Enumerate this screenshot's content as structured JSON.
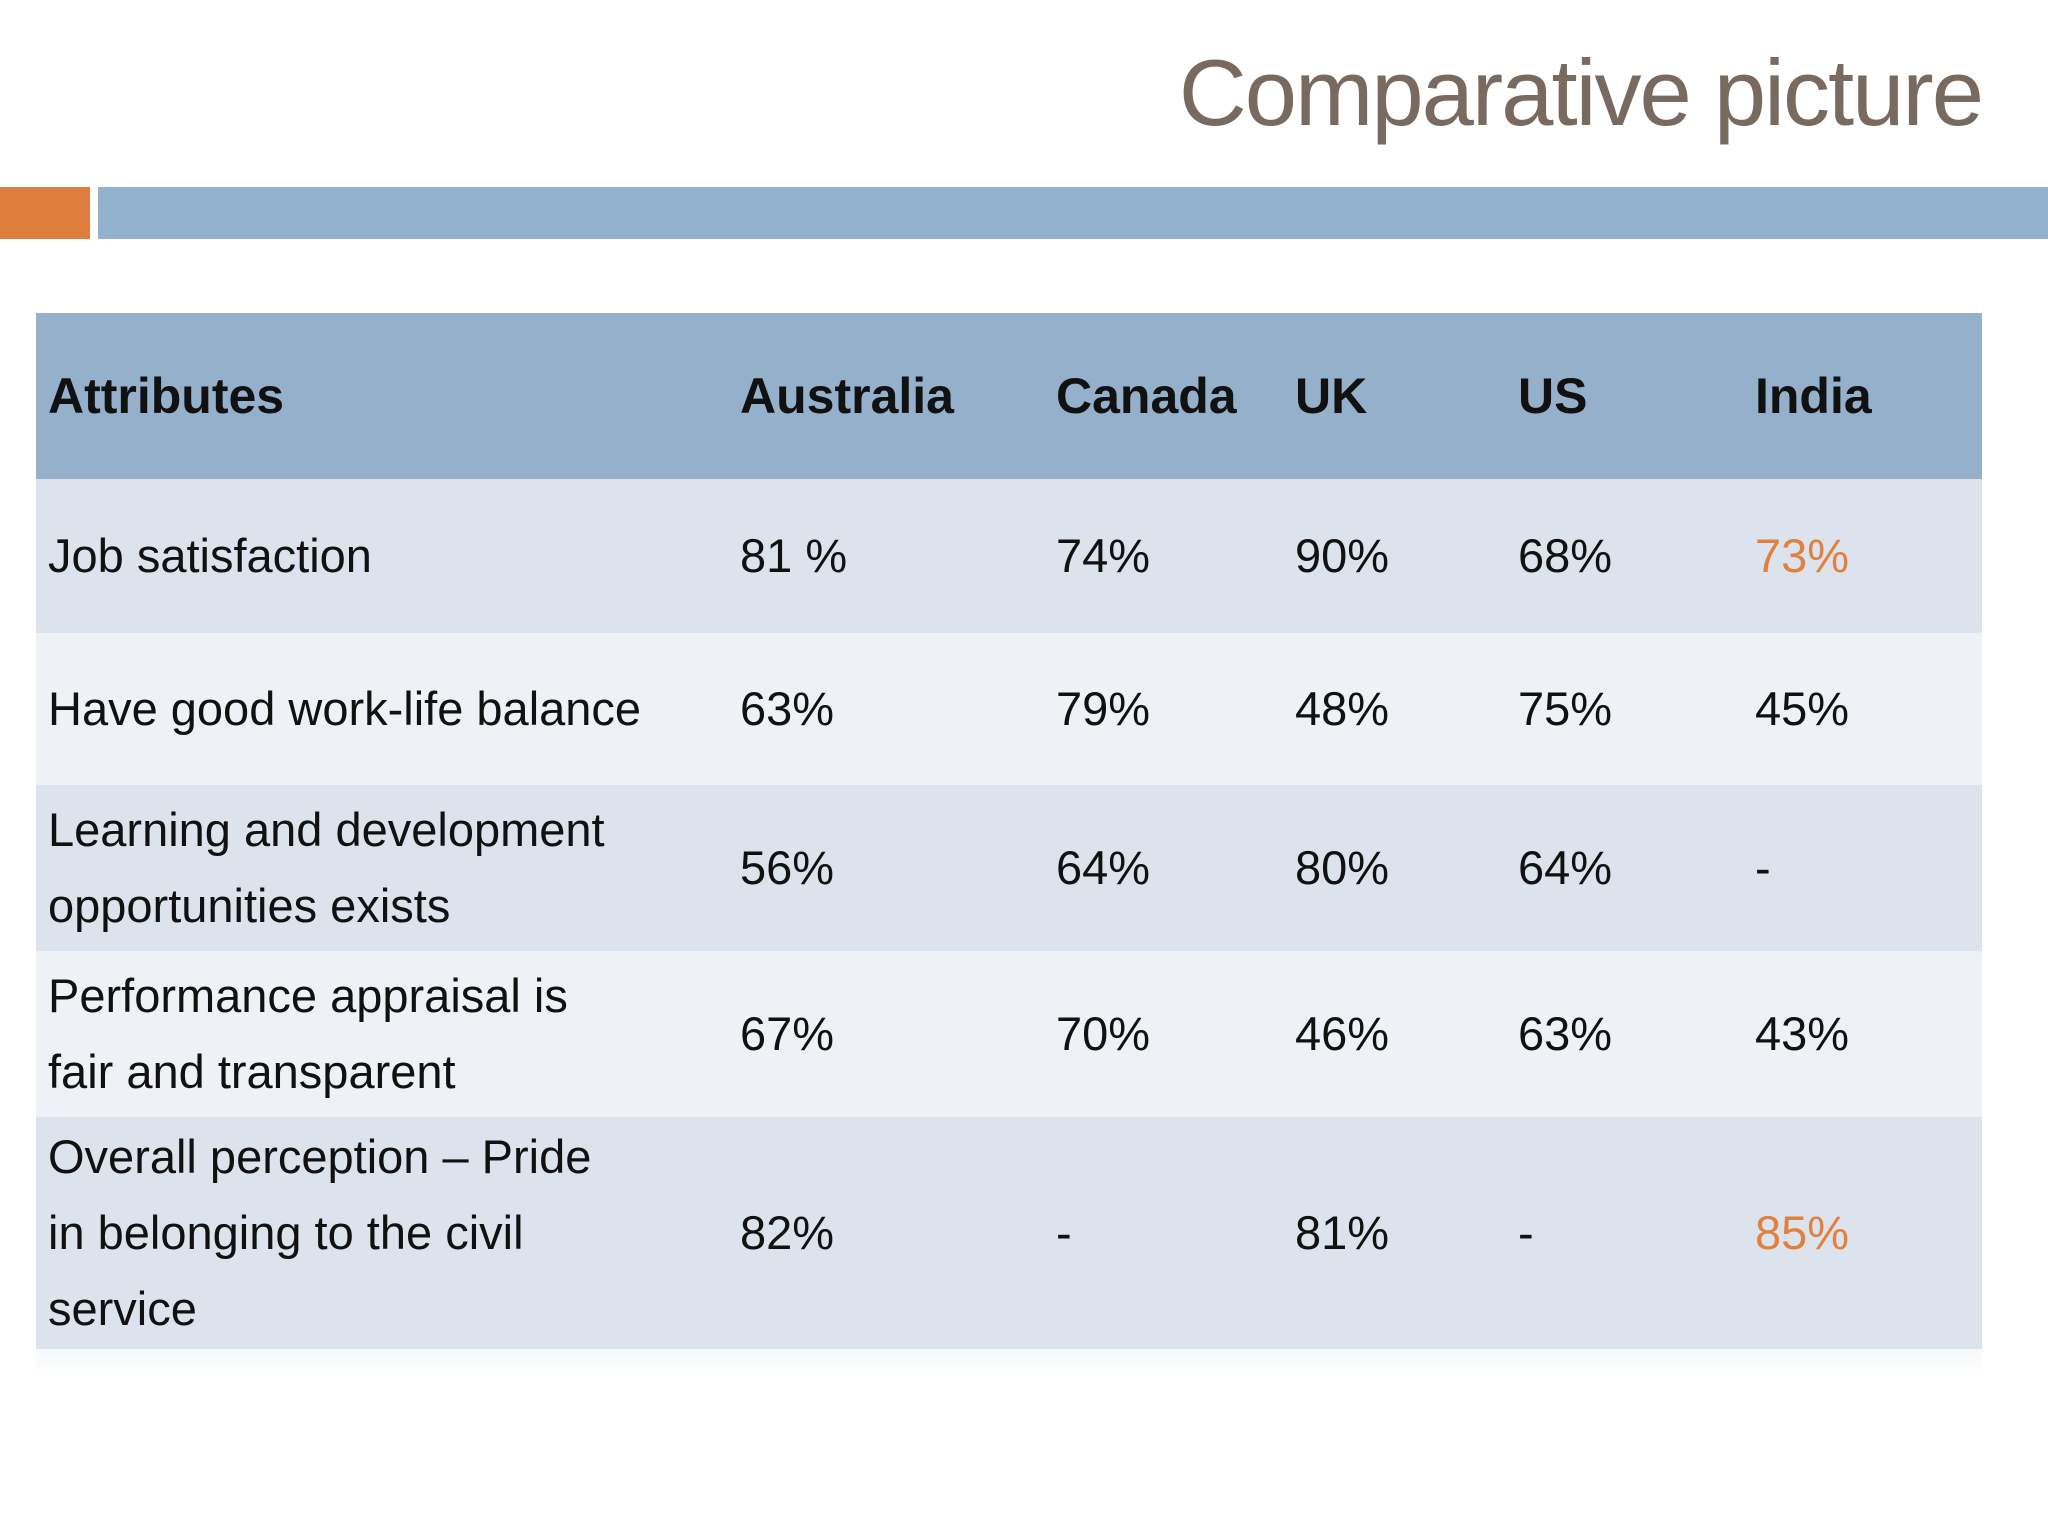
{
  "title": "Comparative picture",
  "colors": {
    "title_text": "#796a60",
    "accent_orange": "#dd7e3e",
    "band_blue": "#93b2ce",
    "header_bg": "#94b0cb",
    "row_dark": "#dce3ed",
    "row_light": "#eef2f7",
    "text": "#111111",
    "highlight": "#e0813f"
  },
  "table": {
    "header": [
      "Attributes",
      "Australia",
      "Canada",
      "UK",
      "US",
      "India"
    ],
    "rows": [
      {
        "cells": [
          "Job satisfaction",
          "81 %",
          "74%",
          "90%",
          "68%",
          "73%"
        ],
        "highlight_cols": [
          5
        ]
      },
      {
        "cells": [
          "Have good work-life balance",
          "63%",
          "79%",
          "48%",
          "75%",
          "45%"
        ],
        "highlight_cols": []
      },
      {
        "cells": [
          "Learning and development\nopportunities exists",
          "56%",
          "64%",
          "80%",
          "64%",
          "-"
        ],
        "highlight_cols": []
      },
      {
        "cells": [
          "Performance  appraisal is\nfair and transparent",
          "67%",
          "70%",
          "46%",
          "63%",
          "43%"
        ],
        "highlight_cols": []
      },
      {
        "cells": [
          "Overall perception – Pride\nin belonging to the civil\nservice",
          "82%",
          "-",
          "81%",
          "-",
          "85%"
        ],
        "highlight_cols": [
          5
        ]
      }
    ]
  }
}
